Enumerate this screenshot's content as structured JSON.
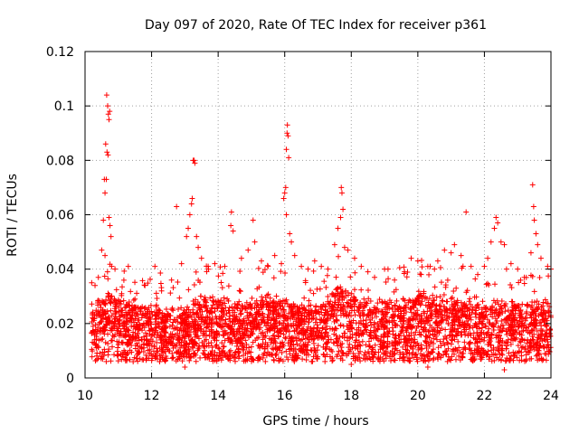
{
  "chart_data": {
    "type": "scatter",
    "title": "Day 097 of 2020, Rate Of TEC Index for receiver p361",
    "xlabel": "GPS time / hours",
    "ylabel": "ROTI / TECUs",
    "xlim": [
      10,
      24
    ],
    "ylim": [
      0,
      0.12
    ],
    "xticks": [
      10,
      12,
      14,
      16,
      18,
      20,
      22,
      24
    ],
    "yticks": [
      0,
      0.02,
      0.04,
      0.06,
      0.08,
      0.1,
      0.12
    ],
    "xtick_labels": [
      "10",
      "12",
      "14",
      "16",
      "18",
      "20",
      "22",
      "24"
    ],
    "ytick_labels": [
      "0",
      "0.02",
      "0.04",
      "0.06",
      "0.08",
      "0.1",
      "0.12"
    ],
    "grid": true,
    "marker": "plus",
    "color": "#ff0000",
    "baseline": [
      [
        10.2,
        0.015
      ],
      [
        10.7,
        0.02
      ],
      [
        11.2,
        0.017
      ],
      [
        12.0,
        0.015
      ],
      [
        12.8,
        0.014
      ],
      [
        13.3,
        0.018
      ],
      [
        14.0,
        0.018
      ],
      [
        14.5,
        0.016
      ],
      [
        15.0,
        0.017
      ],
      [
        15.5,
        0.019
      ],
      [
        16.0,
        0.018
      ],
      [
        16.5,
        0.016
      ],
      [
        17.0,
        0.015
      ],
      [
        17.6,
        0.022
      ],
      [
        18.0,
        0.02
      ],
      [
        18.5,
        0.017
      ],
      [
        19.0,
        0.016
      ],
      [
        19.5,
        0.017
      ],
      [
        20.0,
        0.02
      ],
      [
        20.5,
        0.018
      ],
      [
        21.0,
        0.018
      ],
      [
        21.5,
        0.017
      ],
      [
        22.0,
        0.016
      ],
      [
        22.5,
        0.017
      ],
      [
        23.0,
        0.017
      ],
      [
        23.5,
        0.016
      ],
      [
        24.0,
        0.015
      ]
    ],
    "points": [
      [
        10.65,
        0.104
      ],
      [
        10.68,
        0.1
      ],
      [
        10.7,
        0.097
      ],
      [
        10.72,
        0.095
      ],
      [
        10.74,
        0.098
      ],
      [
        10.62,
        0.086
      ],
      [
        10.66,
        0.083
      ],
      [
        10.69,
        0.082
      ],
      [
        10.58,
        0.073
      ],
      [
        10.64,
        0.073
      ],
      [
        10.6,
        0.068
      ],
      [
        10.55,
        0.058
      ],
      [
        10.72,
        0.059
      ],
      [
        10.78,
        0.052
      ],
      [
        10.75,
        0.056
      ],
      [
        10.5,
        0.047
      ],
      [
        10.6,
        0.045
      ],
      [
        10.8,
        0.041
      ],
      [
        10.4,
        0.037
      ],
      [
        10.3,
        0.034
      ],
      [
        10.2,
        0.035
      ],
      [
        10.9,
        0.04
      ],
      [
        11.1,
        0.031
      ],
      [
        11.3,
        0.041
      ],
      [
        11.5,
        0.029
      ],
      [
        11.8,
        0.034
      ],
      [
        12.3,
        0.032
      ],
      [
        12.1,
        0.041
      ],
      [
        12.6,
        0.036
      ],
      [
        12.9,
        0.042
      ],
      [
        12.75,
        0.063
      ],
      [
        13.05,
        0.052
      ],
      [
        13.1,
        0.055
      ],
      [
        13.15,
        0.06
      ],
      [
        13.22,
        0.066
      ],
      [
        13.25,
        0.08
      ],
      [
        13.28,
        0.08
      ],
      [
        13.3,
        0.079
      ],
      [
        13.2,
        0.064
      ],
      [
        13.35,
        0.052
      ],
      [
        13.4,
        0.048
      ],
      [
        13.5,
        0.044
      ],
      [
        13.7,
        0.041
      ],
      [
        13.9,
        0.042
      ],
      [
        14.2,
        0.041
      ],
      [
        14.4,
        0.061
      ],
      [
        14.38,
        0.056
      ],
      [
        14.45,
        0.054
      ],
      [
        14.7,
        0.044
      ],
      [
        14.9,
        0.047
      ],
      [
        15.05,
        0.058
      ],
      [
        15.1,
        0.05
      ],
      [
        15.3,
        0.043
      ],
      [
        15.5,
        0.041
      ],
      [
        15.7,
        0.045
      ],
      [
        15.9,
        0.042
      ],
      [
        15.97,
        0.066
      ],
      [
        16.0,
        0.068
      ],
      [
        16.03,
        0.07
      ],
      [
        16.05,
        0.084
      ],
      [
        16.07,
        0.09
      ],
      [
        16.08,
        0.093
      ],
      [
        16.1,
        0.089
      ],
      [
        16.12,
        0.081
      ],
      [
        16.05,
        0.06
      ],
      [
        16.15,
        0.053
      ],
      [
        16.2,
        0.05
      ],
      [
        16.3,
        0.045
      ],
      [
        16.5,
        0.041
      ],
      [
        16.7,
        0.04
      ],
      [
        16.9,
        0.043
      ],
      [
        17.1,
        0.041
      ],
      [
        17.3,
        0.04
      ],
      [
        17.5,
        0.049
      ],
      [
        17.6,
        0.055
      ],
      [
        17.7,
        0.07
      ],
      [
        17.72,
        0.068
      ],
      [
        17.75,
        0.062
      ],
      [
        17.68,
        0.059
      ],
      [
        17.8,
        0.048
      ],
      [
        17.9,
        0.047
      ],
      [
        18.1,
        0.044
      ],
      [
        18.3,
        0.041
      ],
      [
        18.5,
        0.039
      ],
      [
        18.7,
        0.037
      ],
      [
        19.0,
        0.04
      ],
      [
        19.3,
        0.036
      ],
      [
        19.6,
        0.039
      ],
      [
        19.8,
        0.044
      ],
      [
        20.0,
        0.043
      ],
      [
        20.1,
        0.038
      ],
      [
        20.3,
        0.041
      ],
      [
        20.5,
        0.04
      ],
      [
        20.6,
        0.043
      ],
      [
        20.8,
        0.047
      ],
      [
        21.0,
        0.046
      ],
      [
        21.1,
        0.049
      ],
      [
        21.3,
        0.045
      ],
      [
        21.45,
        0.061
      ],
      [
        21.6,
        0.041
      ],
      [
        21.8,
        0.038
      ],
      [
        22.0,
        0.041
      ],
      [
        22.1,
        0.044
      ],
      [
        22.2,
        0.05
      ],
      [
        22.3,
        0.055
      ],
      [
        22.35,
        0.059
      ],
      [
        22.4,
        0.057
      ],
      [
        22.5,
        0.05
      ],
      [
        22.6,
        0.049
      ],
      [
        22.8,
        0.042
      ],
      [
        23.0,
        0.04
      ],
      [
        23.2,
        0.037
      ],
      [
        23.4,
        0.046
      ],
      [
        23.45,
        0.071
      ],
      [
        23.48,
        0.063
      ],
      [
        23.5,
        0.058
      ],
      [
        23.55,
        0.053
      ],
      [
        23.6,
        0.049
      ],
      [
        23.7,
        0.044
      ],
      [
        23.9,
        0.041
      ],
      [
        24.0,
        0.04
      ],
      [
        22.6,
        0.003
      ],
      [
        18.0,
        0.005
      ],
      [
        13.0,
        0.004
      ],
      [
        20.3,
        0.004
      ]
    ]
  }
}
